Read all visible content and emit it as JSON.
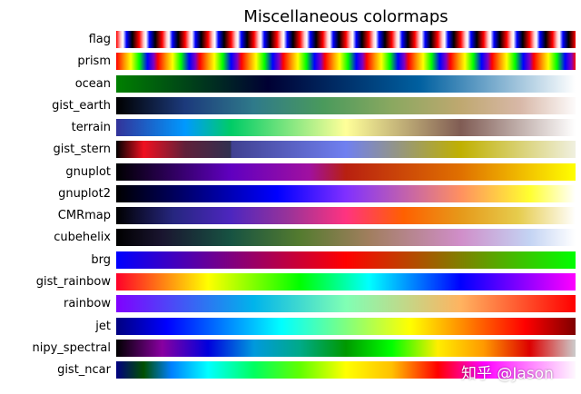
{
  "title": "Miscellaneous colormaps",
  "watermark": "知乎 @Jason",
  "colormaps": [
    {
      "name": "flag",
      "cycles": 20,
      "stops": [
        [
          0,
          "#ff0000"
        ],
        [
          0.2,
          "#ffd0d0"
        ],
        [
          0.3,
          "#ffffff"
        ],
        [
          0.45,
          "#0000ff"
        ],
        [
          0.7,
          "#000000"
        ],
        [
          1,
          "#ff0000"
        ]
      ]
    },
    {
      "name": "prism",
      "cycles": 11,
      "stops": [
        [
          0,
          "#ff0000"
        ],
        [
          0.2,
          "#ff9900"
        ],
        [
          0.35,
          "#ffff00"
        ],
        [
          0.55,
          "#00ff00"
        ],
        [
          0.75,
          "#0000ff"
        ],
        [
          0.9,
          "#8000c0"
        ],
        [
          1,
          "#ff0000"
        ]
      ]
    },
    {
      "name": "ocean",
      "cycles": 1,
      "stops": [
        [
          0,
          "#008000"
        ],
        [
          0.33,
          "#000033"
        ],
        [
          0.66,
          "#0060a0"
        ],
        [
          1,
          "#ffffff"
        ]
      ]
    },
    {
      "name": "gist_earth",
      "cycles": 1,
      "stops": [
        [
          0,
          "#000000"
        ],
        [
          0.15,
          "#1c3a7c"
        ],
        [
          0.3,
          "#2f7a8a"
        ],
        [
          0.45,
          "#4a9a5c"
        ],
        [
          0.6,
          "#8aa860"
        ],
        [
          0.75,
          "#bfa870"
        ],
        [
          0.88,
          "#d8b8a8"
        ],
        [
          1,
          "#fdfbfb"
        ]
      ]
    },
    {
      "name": "terrain",
      "cycles": 1,
      "stops": [
        [
          0,
          "#333399"
        ],
        [
          0.15,
          "#0099ff"
        ],
        [
          0.25,
          "#00cc66"
        ],
        [
          0.5,
          "#ffff99"
        ],
        [
          0.75,
          "#805c54"
        ],
        [
          1,
          "#ffffff"
        ]
      ]
    },
    {
      "name": "gist_stern",
      "cycles": 1,
      "stops": [
        [
          0,
          "#000000"
        ],
        [
          0.06,
          "#f01020"
        ],
        [
          0.15,
          "#60203a"
        ],
        [
          0.25,
          "#303050"
        ],
        [
          0.25,
          "#404090"
        ],
        [
          0.5,
          "#7080f0"
        ],
        [
          0.75,
          "#c0b000"
        ],
        [
          1,
          "#f0f0e0"
        ]
      ]
    },
    {
      "name": "gnuplot",
      "cycles": 1,
      "stops": [
        [
          0,
          "#000000"
        ],
        [
          0.25,
          "#6000c0"
        ],
        [
          0.42,
          "#a010a0"
        ],
        [
          0.5,
          "#b82010"
        ],
        [
          0.75,
          "#e07000"
        ],
        [
          1,
          "#ffff00"
        ]
      ]
    },
    {
      "name": "gnuplot2",
      "cycles": 1,
      "stops": [
        [
          0,
          "#000000"
        ],
        [
          0.35,
          "#0000ff"
        ],
        [
          0.5,
          "#8030ff"
        ],
        [
          0.75,
          "#ff9060"
        ],
        [
          0.9,
          "#ffff30"
        ],
        [
          1,
          "#ffffff"
        ]
      ]
    },
    {
      "name": "CMRmap",
      "cycles": 1,
      "stops": [
        [
          0,
          "#000000"
        ],
        [
          0.125,
          "#262680"
        ],
        [
          0.25,
          "#4d26bf"
        ],
        [
          0.375,
          "#993399"
        ],
        [
          0.5,
          "#ff3380"
        ],
        [
          0.625,
          "#ff6000"
        ],
        [
          0.75,
          "#e6991a"
        ],
        [
          0.875,
          "#e6cc4d"
        ],
        [
          1,
          "#ffffff"
        ]
      ]
    },
    {
      "name": "cubehelix",
      "cycles": 1,
      "stops": [
        [
          0,
          "#000000"
        ],
        [
          0.1,
          "#1a1530"
        ],
        [
          0.25,
          "#175342"
        ],
        [
          0.4,
          "#547b2f"
        ],
        [
          0.55,
          "#a17e5e"
        ],
        [
          0.75,
          "#d08ec9"
        ],
        [
          0.9,
          "#c3d3f3"
        ],
        [
          1,
          "#ffffff"
        ]
      ]
    },
    {
      "name": "brg",
      "cycles": 1,
      "stops": [
        [
          0,
          "#0000ff"
        ],
        [
          0.5,
          "#ff0000"
        ],
        [
          1,
          "#00ff00"
        ]
      ]
    },
    {
      "name": "gist_rainbow",
      "cycles": 1,
      "stops": [
        [
          0,
          "#ff0029"
        ],
        [
          0.2,
          "#ffff00"
        ],
        [
          0.4,
          "#00ff00"
        ],
        [
          0.55,
          "#00ffff"
        ],
        [
          0.75,
          "#0000ff"
        ],
        [
          1,
          "#ff00ff"
        ]
      ]
    },
    {
      "name": "rainbow",
      "cycles": 1,
      "stops": [
        [
          0,
          "#8000ff"
        ],
        [
          0.3,
          "#00b4eb"
        ],
        [
          0.5,
          "#80ffb4"
        ],
        [
          0.75,
          "#ffb360"
        ],
        [
          1,
          "#ff0000"
        ]
      ]
    },
    {
      "name": "jet",
      "cycles": 1,
      "stops": [
        [
          0,
          "#00007f"
        ],
        [
          0.11,
          "#0000ff"
        ],
        [
          0.36,
          "#00ffff"
        ],
        [
          0.64,
          "#ffff00"
        ],
        [
          0.89,
          "#ff0000"
        ],
        [
          1,
          "#7f0000"
        ]
      ]
    },
    {
      "name": "nipy_spectral",
      "cycles": 1,
      "stops": [
        [
          0,
          "#000000"
        ],
        [
          0.1,
          "#8800a0"
        ],
        [
          0.2,
          "#0000dd"
        ],
        [
          0.3,
          "#0099dd"
        ],
        [
          0.4,
          "#00aa88"
        ],
        [
          0.5,
          "#009900"
        ],
        [
          0.6,
          "#00ff00"
        ],
        [
          0.7,
          "#ffee00"
        ],
        [
          0.8,
          "#ff9900"
        ],
        [
          0.9,
          "#dd0000"
        ],
        [
          1,
          "#cccccc"
        ]
      ]
    },
    {
      "name": "gist_ncar",
      "cycles": 1,
      "stops": [
        [
          0,
          "#000080"
        ],
        [
          0.06,
          "#005000"
        ],
        [
          0.12,
          "#0080ff"
        ],
        [
          0.2,
          "#00ffff"
        ],
        [
          0.3,
          "#00ff60"
        ],
        [
          0.4,
          "#60ff00"
        ],
        [
          0.5,
          "#ffff00"
        ],
        [
          0.6,
          "#ffc000"
        ],
        [
          0.7,
          "#ff0000"
        ],
        [
          0.8,
          "#ff00ff"
        ],
        [
          0.9,
          "#ff80ff"
        ],
        [
          1,
          "#fef8fe"
        ]
      ]
    }
  ]
}
